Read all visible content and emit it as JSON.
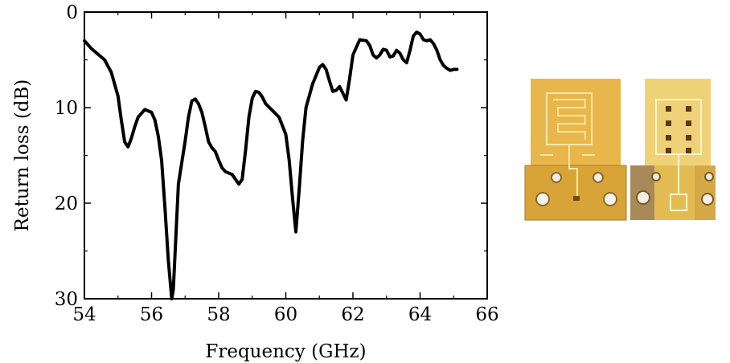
{
  "chart_data": {
    "type": "line",
    "title": "",
    "xlabel": "Frequency (GHz)",
    "ylabel": "Return loss (dB)",
    "xlim": [
      54,
      66
    ],
    "ylim": [
      0,
      30
    ],
    "y_axis_inverted": true,
    "x_ticks": [
      54,
      56,
      58,
      60,
      62,
      64,
      66
    ],
    "y_ticks": [
      0,
      10,
      20,
      30
    ],
    "x_tick_labels": [
      "54",
      "56",
      "58",
      "60",
      "62",
      "64",
      "66"
    ],
    "y_tick_labels": [
      "0",
      "10",
      "20",
      "30"
    ],
    "grid": false,
    "legend": "none",
    "series": [
      {
        "color": "#000000",
        "x": [
          54.0,
          54.2,
          54.4,
          54.6,
          54.8,
          55.0,
          55.1,
          55.2,
          55.3,
          55.4,
          55.5,
          55.6,
          55.8,
          56.0,
          56.1,
          56.2,
          56.3,
          56.4,
          56.5,
          56.6,
          56.65,
          56.8,
          57.0,
          57.1,
          57.2,
          57.3,
          57.4,
          57.5,
          57.6,
          57.7,
          57.8,
          57.9,
          58.0,
          58.1,
          58.2,
          58.4,
          58.6,
          58.7,
          58.8,
          58.9,
          59.0,
          59.1,
          59.2,
          59.3,
          59.4,
          59.6,
          59.8,
          60.0,
          60.1,
          60.2,
          60.3,
          60.4,
          60.5,
          60.6,
          60.8,
          61.0,
          61.1,
          61.2,
          61.3,
          61.4,
          61.5,
          61.6,
          61.7,
          61.8,
          61.9,
          62.0,
          62.2,
          62.4,
          62.5,
          62.6,
          62.7,
          62.8,
          62.9,
          63.0,
          63.1,
          63.2,
          63.3,
          63.4,
          63.5,
          63.6,
          63.7,
          63.8,
          63.9,
          64.0,
          64.1,
          64.2,
          64.3,
          64.4,
          64.5,
          64.6,
          64.7,
          64.8,
          64.9,
          65.0,
          65.1
        ],
        "y": [
          3.0,
          3.8,
          4.4,
          5.0,
          6.3,
          8.8,
          11.3,
          13.6,
          14.1,
          13.2,
          12.0,
          11.0,
          10.2,
          10.5,
          11.3,
          13.0,
          15.5,
          20.5,
          26.0,
          30.0,
          29.0,
          18.0,
          13.5,
          11.0,
          9.3,
          9.1,
          9.6,
          10.5,
          12.0,
          13.6,
          14.2,
          14.6,
          15.5,
          16.3,
          16.7,
          17.0,
          18.0,
          17.5,
          14.5,
          11.0,
          9.0,
          8.3,
          8.4,
          8.9,
          9.6,
          10.3,
          11.0,
          12.8,
          15.5,
          19.5,
          23.0,
          18.5,
          13.5,
          10.0,
          7.5,
          5.8,
          5.5,
          6.0,
          7.2,
          8.3,
          8.2,
          7.8,
          8.5,
          9.2,
          7.0,
          4.5,
          2.9,
          3.0,
          3.5,
          4.5,
          4.8,
          4.5,
          3.9,
          4.0,
          4.7,
          4.6,
          4.0,
          4.3,
          5.0,
          5.3,
          4.0,
          2.5,
          2.1,
          2.3,
          2.9,
          3.0,
          2.9,
          3.3,
          4.0,
          5.0,
          5.6,
          5.9,
          6.1,
          6.0,
          6.0
        ]
      }
    ]
  },
  "photo": {
    "description_icon": "antenna-prototype-photo",
    "board_color": "#e8b84a",
    "trace_color": "#f6e7a0"
  }
}
